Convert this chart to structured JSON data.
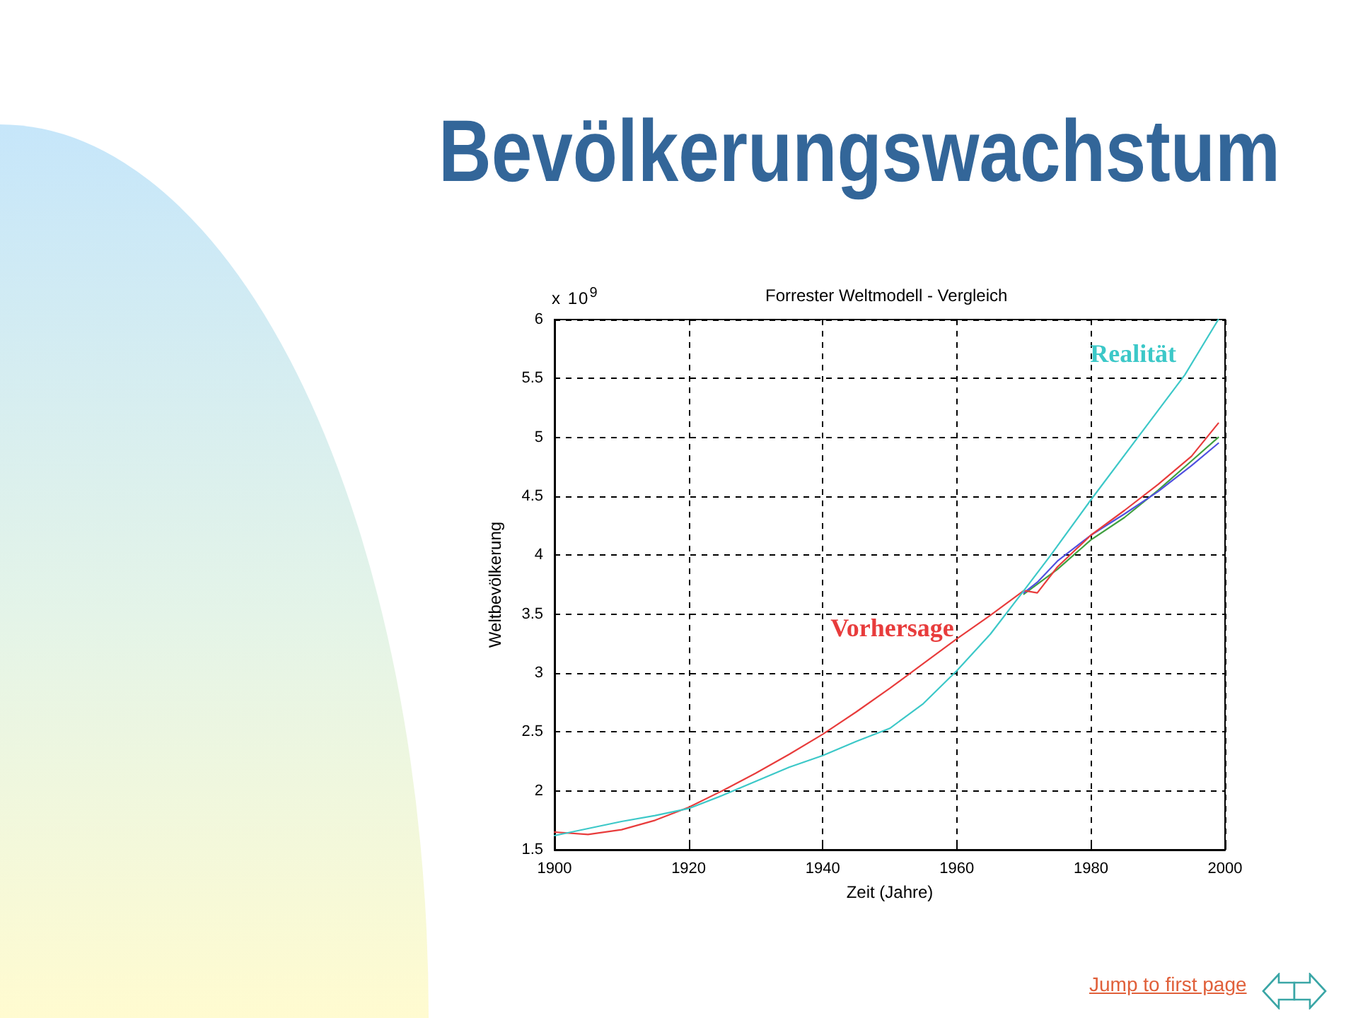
{
  "chart_data": {
    "type": "line",
    "title": "Bevölkerungswachstum",
    "subtitle": "Forrester Weltmodell - Vergleich",
    "xlabel": "Zeit (Jahre)",
    "ylabel": "Weltbevölkerung",
    "annotations": [
      "x 10$^{9}$",
      "Jump to first page"
    ],
    "xlim": [
      1900,
      2000
    ],
    "xticks": [
      1900,
      1920,
      1940,
      1960,
      1980,
      2000
    ],
    "ylim": [
      1.5,
      6
    ],
    "yticks": [
      1.5,
      2,
      2.5,
      3,
      3.5,
      4,
      4.5,
      5,
      5.5,
      6
    ],
    "grid": true,
    "line_style": "solid",
    "series": [
      {
        "name": "Realität",
        "color": "#3cc8c8",
        "x": [
          1900,
          1905,
          1910,
          1915,
          1920,
          1925,
          1930,
          1935,
          1940,
          1945,
          1950,
          1955,
          1960,
          1965,
          1970,
          1974,
          1980,
          1987,
          1994,
          1999
        ],
        "values": [
          1.62,
          1.68,
          1.74,
          1.79,
          1.85,
          1.96,
          2.08,
          2.2,
          2.3,
          2.42,
          2.53,
          2.74,
          3.02,
          3.33,
          3.7,
          4.0,
          4.47,
          5.0,
          5.53,
          6.0
        ]
      },
      {
        "name": "Vorhersage",
        "color": "#e83c3c",
        "x": [
          1900,
          1905,
          1910,
          1915,
          1920,
          1925,
          1930,
          1935,
          1940,
          1945,
          1950,
          1955,
          1960,
          1965,
          1970,
          1972,
          1975,
          1980,
          1985,
          1990,
          1995,
          1999
        ],
        "values": [
          1.65,
          1.63,
          1.67,
          1.75,
          1.86,
          2.0,
          2.15,
          2.31,
          2.48,
          2.67,
          2.87,
          3.08,
          3.29,
          3.49,
          3.7,
          3.68,
          3.9,
          4.17,
          4.38,
          4.6,
          4.84,
          5.12
        ]
      },
      {
        "color": "#5050e0",
        "x": [
          1970,
          1972,
          1975,
          1980,
          1985,
          1990,
          1995,
          1999
        ],
        "values": [
          3.68,
          3.77,
          3.95,
          4.17,
          4.35,
          4.54,
          4.76,
          4.95
        ]
      },
      {
        "color": "#40a040",
        "x": [
          1970,
          1975,
          1980,
          1985,
          1990,
          1995,
          1999
        ],
        "values": [
          3.67,
          3.88,
          4.13,
          4.32,
          4.55,
          4.8,
          5.0
        ]
      }
    ]
  }
}
